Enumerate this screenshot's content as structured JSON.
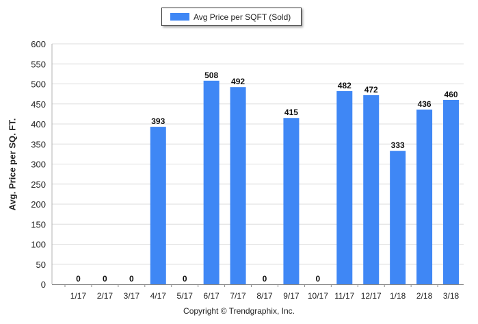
{
  "chart_data": {
    "type": "bar",
    "title": "",
    "legend": "Avg Price per SQFT (Sold)",
    "legend_position": "top-center",
    "ylabel": "Avg. Price per SQ. FT.",
    "xlabel": "",
    "ylim": [
      0,
      600
    ],
    "yticks": [
      0,
      50,
      100,
      150,
      200,
      250,
      300,
      350,
      400,
      450,
      500,
      550,
      600
    ],
    "grid": true,
    "categories": [
      "1/17",
      "2/17",
      "3/17",
      "4/17",
      "5/17",
      "6/17",
      "7/17",
      "8/17",
      "9/17",
      "10/17",
      "11/17",
      "12/17",
      "1/18",
      "2/18",
      "3/18"
    ],
    "series": [
      {
        "name": "Avg Price per SQFT (Sold)",
        "values": [
          0,
          0,
          0,
          393,
          0,
          508,
          492,
          0,
          415,
          0,
          482,
          472,
          333,
          436,
          460
        ]
      }
    ],
    "bar_color": "#3f87f5"
  },
  "footer": {
    "copyright": "Copyright © Trendgraphix, Inc."
  }
}
